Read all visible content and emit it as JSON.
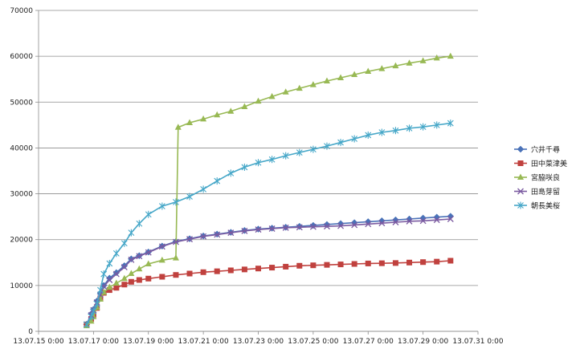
{
  "chart_data": {
    "type": "line",
    "title": "",
    "xlabel": "",
    "ylabel": "",
    "x_range": [
      "13.07.15 0:00",
      "13.07.31 0:00"
    ],
    "ylim": [
      0,
      70000
    ],
    "grid": "horizontal",
    "legend_position": "right",
    "x_tick_labels": [
      "13.07.15 0:00",
      "13.07.17 0:00",
      "13.07.19 0:00",
      "13.07.21 0:00",
      "13.07.23 0:00",
      "13.07.25 0:00",
      "13.07.27 0:00",
      "13.07.29 0:00",
      "13.07.31 0:00"
    ],
    "y_tick_labels": [
      "0",
      "10000",
      "20000",
      "30000",
      "40000",
      "50000",
      "60000",
      "70000"
    ],
    "series": [
      {
        "name": "穴井千尋",
        "color": "#4a72b8",
        "marker": "diamond",
        "x": [
          "13.07.16 18:00",
          "13.07.16 22:00",
          "13.07.17 0:00",
          "13.07.17 3:00",
          "13.07.17 6:00",
          "13.07.17 9:00",
          "13.07.17 14:00",
          "13.07.17 20:00",
          "13.07.18 3:00",
          "13.07.18 9:00",
          "13.07.18 16:00",
          "13.07.19 0:00",
          "13.07.19 12:00",
          "13.07.20 0:00",
          "13.07.20 12:00",
          "13.07.21 0:00",
          "13.07.21 12:00",
          "13.07.22 0:00",
          "13.07.22 12:00",
          "13.07.23 0:00",
          "13.07.23 12:00",
          "13.07.24 0:00",
          "13.07.24 12:00",
          "13.07.25 0:00",
          "13.07.25 12:00",
          "13.07.26 0:00",
          "13.07.26 12:00",
          "13.07.27 0:00",
          "13.07.27 12:00",
          "13.07.28 0:00",
          "13.07.28 12:00",
          "13.07.29 0:00",
          "13.07.29 12:00",
          "13.07.30 0:00"
        ],
        "y": [
          1500,
          3800,
          4800,
          6600,
          8200,
          10000,
          11600,
          12800,
          14300,
          15800,
          16500,
          17300,
          18600,
          19600,
          20200,
          20800,
          21200,
          21600,
          22000,
          22300,
          22500,
          22700,
          22900,
          23100,
          23300,
          23500,
          23700,
          23900,
          24100,
          24300,
          24500,
          24700,
          24900,
          25100
        ]
      },
      {
        "name": "田中菜津美",
        "color": "#c0413e",
        "marker": "square",
        "x": [
          "13.07.16 18:00",
          "13.07.16 22:00",
          "13.07.17 0:00",
          "13.07.17 3:00",
          "13.07.17 6:00",
          "13.07.17 9:00",
          "13.07.17 14:00",
          "13.07.17 20:00",
          "13.07.18 3:00",
          "13.07.18 9:00",
          "13.07.18 16:00",
          "13.07.19 0:00",
          "13.07.19 12:00",
          "13.07.20 0:00",
          "13.07.20 12:00",
          "13.07.21 0:00",
          "13.07.21 12:00",
          "13.07.22 0:00",
          "13.07.22 12:00",
          "13.07.23 0:00",
          "13.07.23 12:00",
          "13.07.24 0:00",
          "13.07.24 12:00",
          "13.07.25 0:00",
          "13.07.25 12:00",
          "13.07.26 0:00",
          "13.07.26 12:00",
          "13.07.27 0:00",
          "13.07.27 12:00",
          "13.07.28 0:00",
          "13.07.28 12:00",
          "13.07.29 0:00",
          "13.07.29 12:00",
          "13.07.30 0:00"
        ],
        "y": [
          1500,
          2700,
          3600,
          5100,
          7200,
          8400,
          9000,
          9500,
          10200,
          10800,
          11200,
          11500,
          11900,
          12300,
          12600,
          12900,
          13100,
          13300,
          13500,
          13700,
          13900,
          14100,
          14300,
          14400,
          14500,
          14600,
          14700,
          14800,
          14850,
          14900,
          15000,
          15100,
          15200,
          15400
        ]
      },
      {
        "name": "宮脇咲良",
        "color": "#98b954",
        "marker": "triangle",
        "x": [
          "13.07.16 18:00",
          "13.07.16 22:00",
          "13.07.17 0:00",
          "13.07.17 3:00",
          "13.07.17 6:00",
          "13.07.17 9:00",
          "13.07.17 14:00",
          "13.07.17 20:00",
          "13.07.18 3:00",
          "13.07.18 9:00",
          "13.07.18 16:00",
          "13.07.19 0:00",
          "13.07.19 12:00",
          "13.07.20 0:00",
          "13.07.20 2:00",
          "13.07.20 12:00",
          "13.07.21 0:00",
          "13.07.21 12:00",
          "13.07.22 0:00",
          "13.07.22 12:00",
          "13.07.23 0:00",
          "13.07.23 12:00",
          "13.07.24 0:00",
          "13.07.24 12:00",
          "13.07.25 0:00",
          "13.07.25 12:00",
          "13.07.26 0:00",
          "13.07.26 12:00",
          "13.07.27 0:00",
          "13.07.27 12:00",
          "13.07.28 0:00",
          "13.07.28 12:00",
          "13.07.29 0:00",
          "13.07.29 12:00",
          "13.07.30 0:00"
        ],
        "y": [
          1200,
          2200,
          3200,
          5200,
          7000,
          8500,
          9600,
          10500,
          11500,
          12600,
          13600,
          14700,
          15500,
          16000,
          44500,
          45500,
          46300,
          47200,
          48000,
          49000,
          50200,
          51200,
          52200,
          53000,
          53800,
          54600,
          55300,
          56000,
          56700,
          57300,
          57900,
          58500,
          59000,
          59600,
          60000
        ]
      },
      {
        "name": "田島芽留",
        "color": "#7b5ba1",
        "marker": "x",
        "x": [
          "13.07.16 18:00",
          "13.07.16 22:00",
          "13.07.17 0:00",
          "13.07.17 3:00",
          "13.07.17 6:00",
          "13.07.17 9:00",
          "13.07.17 14:00",
          "13.07.17 20:00",
          "13.07.18 3:00",
          "13.07.18 9:00",
          "13.07.18 16:00",
          "13.07.19 0:00",
          "13.07.19 12:00",
          "13.07.20 0:00",
          "13.07.20 12:00",
          "13.07.21 0:00",
          "13.07.21 12:00",
          "13.07.22 0:00",
          "13.07.22 12:00",
          "13.07.23 0:00",
          "13.07.23 12:00",
          "13.07.24 0:00",
          "13.07.24 12:00",
          "13.07.25 0:00",
          "13.07.25 12:00",
          "13.07.26 0:00",
          "13.07.26 12:00",
          "13.07.27 0:00",
          "13.07.27 12:00",
          "13.07.28 0:00",
          "13.07.28 12:00",
          "13.07.29 0:00",
          "13.07.29 12:00",
          "13.07.30 0:00"
        ],
        "y": [
          1500,
          3500,
          4600,
          6300,
          8000,
          9800,
          11200,
          12500,
          14000,
          15600,
          16400,
          17200,
          18500,
          19500,
          20100,
          20700,
          21100,
          21500,
          21900,
          22200,
          22400,
          22600,
          22700,
          22800,
          22900,
          23000,
          23200,
          23400,
          23600,
          23800,
          24000,
          24100,
          24300,
          24500
        ]
      },
      {
        "name": "朝長美桜",
        "color": "#46a7c8",
        "marker": "star",
        "x": [
          "13.07.16 18:00",
          "13.07.16 22:00",
          "13.07.17 0:00",
          "13.07.17 3:00",
          "13.07.17 6:00",
          "13.07.17 9:00",
          "13.07.17 14:00",
          "13.07.17 20:00",
          "13.07.18 3:00",
          "13.07.18 9:00",
          "13.07.18 16:00",
          "13.07.19 0:00",
          "13.07.19 12:00",
          "13.07.20 0:00",
          "13.07.20 12:00",
          "13.07.21 0:00",
          "13.07.21 12:00",
          "13.07.22 0:00",
          "13.07.22 12:00",
          "13.07.23 0:00",
          "13.07.23 12:00",
          "13.07.24 0:00",
          "13.07.24 12:00",
          "13.07.25 0:00",
          "13.07.25 12:00",
          "13.07.26 0:00",
          "13.07.26 12:00",
          "13.07.27 0:00",
          "13.07.27 12:00",
          "13.07.28 0:00",
          "13.07.28 12:00",
          "13.07.29 0:00",
          "13.07.29 12:00",
          "13.07.30 0:00"
        ],
        "y": [
          1500,
          3200,
          4400,
          6000,
          9000,
          12500,
          14800,
          17000,
          19200,
          21500,
          23500,
          25500,
          27300,
          28200,
          29400,
          31000,
          32800,
          34500,
          35800,
          36800,
          37500,
          38300,
          39000,
          39700,
          40400,
          41200,
          42000,
          42800,
          43400,
          43800,
          44300,
          44600,
          45000,
          45400
        ]
      }
    ]
  }
}
